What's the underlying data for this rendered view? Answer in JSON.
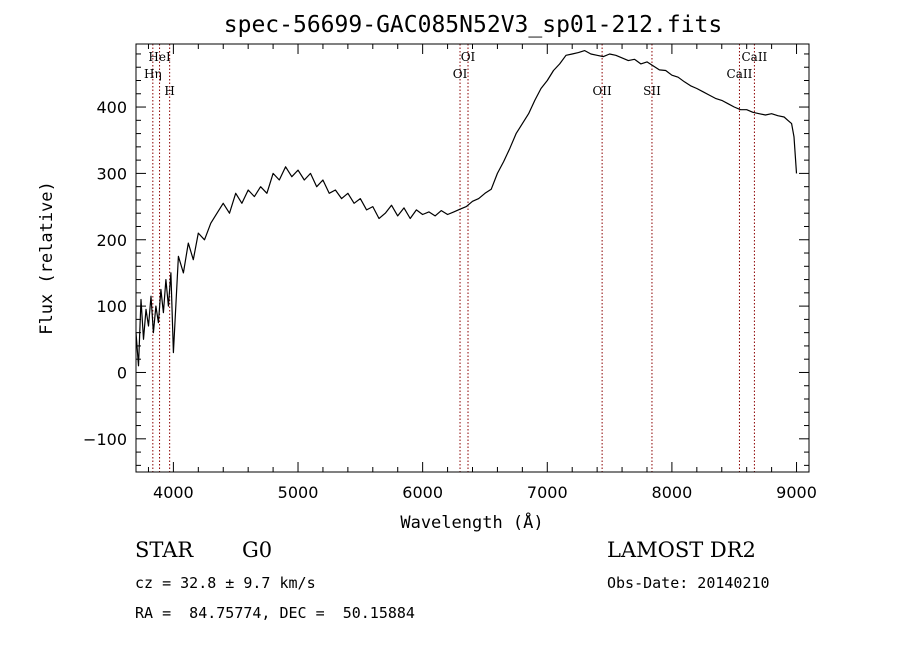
{
  "chart_data": {
    "type": "line",
    "title": "spec-56699-GAC085N52V3_sp01-212.fits",
    "xlabel": "Wavelength (Å)",
    "ylabel": "Flux (relative)",
    "xlim": [
      3700,
      9100
    ],
    "ylim": [
      -150,
      495
    ],
    "xticks": [
      4000,
      5000,
      6000,
      7000,
      8000,
      9000
    ],
    "xtick_labels": [
      "4000",
      "5000",
      "6000",
      "7000",
      "8000",
      "9000"
    ],
    "yticks": [
      -100,
      0,
      100,
      200,
      300,
      400
    ],
    "ytick_labels": [
      "−100",
      "0",
      "100",
      "200",
      "300",
      "400"
    ],
    "grid": false,
    "line_color": "#000000",
    "marker_color": "#8b0000",
    "series": [
      {
        "x": [
          3700,
          3720,
          3740,
          3760,
          3780,
          3800,
          3820,
          3840,
          3860,
          3880,
          3900,
          3920,
          3940,
          3960,
          3980,
          4000,
          4040,
          4080,
          4120,
          4160,
          4200,
          4250,
          4300,
          4350,
          4400,
          4450,
          4500,
          4550,
          4600,
          4650,
          4700,
          4750,
          4800,
          4850,
          4900,
          4950,
          5000,
          5050,
          5100,
          5150,
          5200,
          5250,
          5300,
          5350,
          5400,
          5450,
          5500,
          5550,
          5600,
          5650,
          5700,
          5750,
          5800,
          5850,
          5900,
          5950,
          6000,
          6050,
          6100,
          6150,
          6200,
          6250,
          6300,
          6350,
          6400,
          6450,
          6500,
          6550,
          6600,
          6650,
          6700,
          6750,
          6800,
          6850,
          6900,
          6950,
          7000,
          7050,
          7100,
          7150,
          7200,
          7250,
          7300,
          7350,
          7400,
          7450,
          7500,
          7550,
          7600,
          7650,
          7700,
          7750,
          7800,
          7850,
          7900,
          7950,
          8000,
          8050,
          8100,
          8150,
          8200,
          8250,
          8300,
          8350,
          8400,
          8450,
          8500,
          8550,
          8600,
          8650,
          8700,
          8750,
          8800,
          8850,
          8900,
          8930,
          8960,
          8980,
          9000
        ],
        "y": [
          60,
          10,
          110,
          50,
          95,
          70,
          115,
          60,
          100,
          75,
          125,
          90,
          140,
          100,
          150,
          30,
          175,
          150,
          195,
          170,
          210,
          200,
          225,
          240,
          255,
          240,
          270,
          255,
          275,
          265,
          280,
          270,
          300,
          290,
          310,
          295,
          305,
          290,
          300,
          280,
          290,
          270,
          275,
          262,
          270,
          255,
          262,
          245,
          250,
          232,
          240,
          252,
          236,
          248,
          232,
          245,
          238,
          242,
          236,
          244,
          238,
          242,
          246,
          250,
          258,
          262,
          270,
          276,
          300,
          318,
          338,
          360,
          375,
          390,
          410,
          428,
          440,
          455,
          465,
          478,
          480,
          482,
          485,
          480,
          478,
          476,
          480,
          478,
          474,
          470,
          472,
          465,
          468,
          462,
          456,
          455,
          448,
          445,
          438,
          432,
          428,
          423,
          418,
          413,
          410,
          405,
          400,
          396,
          396,
          392,
          390,
          388,
          390,
          387,
          385,
          380,
          375,
          355,
          300
        ]
      }
    ],
    "lines": [
      {
        "label": "Hη",
        "x": 3835,
        "label_row": "mid"
      },
      {
        "label": "HeI",
        "x": 3889,
        "label_row": "top"
      },
      {
        "label": "H",
        "x": 3970,
        "label_row": "low"
      },
      {
        "label": "OI",
        "x": 6300,
        "label_row": "mid"
      },
      {
        "label": "OI",
        "x": 6364,
        "label_row": "top"
      },
      {
        "label": "OII",
        "x": 7440,
        "label_row": "low"
      },
      {
        "label": "SII",
        "x": 7840,
        "label_row": "low"
      },
      {
        "label": "CaII",
        "x": 8542,
        "label_row": "mid"
      },
      {
        "label": "CaII",
        "x": 8662,
        "label_row": "top"
      }
    ]
  },
  "info": {
    "class": "STAR",
    "subclass": "G0",
    "survey": "LAMOST DR2",
    "cz": "cz = 32.8 ± 9.7 km/s",
    "obs_date": "Obs-Date: 20140210",
    "coords": "RA =  84.75774, DEC =  50.15884"
  }
}
